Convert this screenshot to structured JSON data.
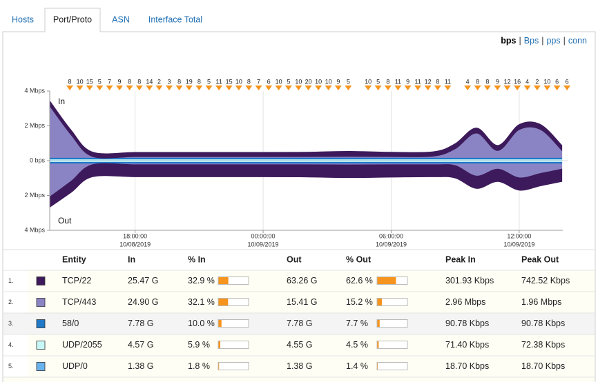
{
  "tabs": [
    "Hosts",
    "Port/Proto",
    "ASN",
    "Interface Total"
  ],
  "active_tab": 1,
  "units": {
    "options": [
      "bps",
      "Bps",
      "pps",
      "conn"
    ],
    "separator": "|",
    "active": 0
  },
  "chart_data": {
    "type": "area",
    "in_label": "In",
    "out_label": "Out",
    "x": [
      14,
      15,
      16,
      18,
      20,
      22,
      24,
      26,
      28,
      30,
      32,
      33,
      34,
      35,
      36,
      37,
      38
    ],
    "xlim": [
      14,
      38.3
    ],
    "xticks": [
      {
        "value": 18,
        "label": [
          "18:00:00",
          "10/08/2019"
        ]
      },
      {
        "value": 24,
        "label": [
          "00:00:00",
          "10/09/2019"
        ]
      },
      {
        "value": 30,
        "label": [
          "06:00:00",
          "10/09/2019"
        ]
      },
      {
        "value": 36,
        "label": [
          "12:00:00",
          "10/09/2019"
        ]
      }
    ],
    "ylim": [
      -4,
      4
    ],
    "yticks": [
      {
        "value": 4,
        "label": "4 Mbps"
      },
      {
        "value": 2,
        "label": "2 Mbps"
      },
      {
        "value": 0,
        "label": "0 bps"
      },
      {
        "value": -2,
        "label": "2 Mbps"
      },
      {
        "value": -4,
        "label": "4 Mbps"
      }
    ],
    "grid": true,
    "series": [
      {
        "color": "#6ab4ee",
        "values": [
          0.02,
          0.02,
          0.02,
          0.02,
          0.02,
          0.02,
          0.02,
          0.02,
          0.02,
          0.02,
          0.02,
          0.02,
          0.02,
          0.02,
          0.02,
          0.02,
          0.02
        ]
      },
      {
        "color": "#c8f7f7",
        "values": [
          0.07,
          0.07,
          0.07,
          0.07,
          0.07,
          0.07,
          0.07,
          0.07,
          0.07,
          0.07,
          0.07,
          0.07,
          0.07,
          0.07,
          0.07,
          0.07,
          0.07
        ]
      },
      {
        "color": "#1f78c8",
        "values": [
          0.09,
          0.09,
          0.09,
          0.09,
          0.09,
          0.09,
          0.09,
          0.09,
          0.09,
          0.09,
          0.09,
          0.09,
          0.09,
          0.09,
          0.09,
          0.09,
          0.09
        ]
      },
      {
        "color": "#8b84c4",
        "values": [
          2.96,
          1.3,
          0.06,
          0.05,
          0.05,
          0.05,
          0.05,
          0.05,
          0.06,
          0.05,
          0.08,
          0.5,
          1.4,
          0.4,
          1.6,
          1.6,
          0.4
        ]
      },
      {
        "color": "#3d1a5b",
        "values": [
          0.3,
          0.28,
          0.26,
          0.25,
          0.25,
          0.25,
          0.25,
          0.26,
          0.3,
          0.26,
          0.26,
          0.3,
          0.3,
          0.3,
          0.3,
          0.3,
          0.3
        ]
      },
      {
        "color": "#6ab4ee",
        "values": [
          -0.02,
          -0.02,
          -0.02,
          -0.02,
          -0.02,
          -0.02,
          -0.02,
          -0.02,
          -0.02,
          -0.02,
          -0.02,
          -0.02,
          -0.02,
          -0.02,
          -0.02,
          -0.02,
          -0.02
        ]
      },
      {
        "color": "#c8f7f7",
        "values": [
          -0.07,
          -0.07,
          -0.07,
          -0.07,
          -0.07,
          -0.07,
          -0.07,
          -0.07,
          -0.07,
          -0.07,
          -0.07,
          -0.07,
          -0.07,
          -0.07,
          -0.07,
          -0.07,
          -0.07
        ]
      },
      {
        "color": "#1f78c8",
        "values": [
          -0.09,
          -0.09,
          -0.09,
          -0.09,
          -0.09,
          -0.09,
          -0.09,
          -0.09,
          -0.09,
          -0.09,
          -0.09,
          -0.09,
          -0.09,
          -0.09,
          -0.09,
          -0.09,
          -0.09
        ]
      },
      {
        "color": "#8b84c4",
        "values": [
          -1.9,
          -1.0,
          -0.05,
          -0.05,
          -0.05,
          -0.05,
          -0.05,
          -0.05,
          -0.06,
          -0.05,
          -0.05,
          -0.1,
          -0.7,
          -0.3,
          -0.8,
          -0.55,
          -0.3
        ]
      },
      {
        "color": "#3d1a5b",
        "values": [
          -0.6,
          -0.65,
          -0.7,
          -0.7,
          -0.7,
          -0.7,
          -0.7,
          -0.71,
          -0.74,
          -0.72,
          -0.7,
          -0.72,
          -0.72,
          -0.72,
          -0.72,
          -0.72,
          -0.72
        ]
      }
    ],
    "events": {
      "color": "#f7941d",
      "x": [
        14.94,
        15.41,
        15.87,
        16.34,
        16.8,
        17.27,
        17.74,
        18.2,
        18.67,
        19.13,
        19.6,
        20.07,
        20.53,
        21.0,
        21.46,
        21.93,
        22.4,
        22.86,
        23.33,
        23.79,
        24.26,
        24.73,
        25.19,
        25.66,
        26.12,
        26.59,
        27.06,
        27.52,
        27.99,
        28.92,
        29.39,
        29.85,
        30.32,
        30.78,
        31.25,
        31.72,
        32.18,
        32.65,
        33.58,
        34.05,
        34.51,
        34.98,
        35.44,
        35.91,
        36.38,
        36.84,
        37.31,
        37.77,
        38.24
      ],
      "counts": [
        8,
        10,
        15,
        5,
        7,
        9,
        8,
        8,
        14,
        2,
        3,
        8,
        19,
        8,
        5,
        11,
        15,
        10,
        8,
        7,
        6,
        10,
        5,
        10,
        20,
        10,
        10,
        9,
        5,
        10,
        5,
        8,
        11,
        9,
        11,
        12,
        8,
        11,
        4,
        8,
        8,
        9,
        12,
        16,
        4,
        2,
        10,
        6,
        6
      ]
    }
  },
  "table": {
    "columns": [
      "Entity",
      "In",
      "% In",
      "Out",
      "% Out",
      "Peak In",
      "Peak Out"
    ],
    "bar_color": "#f7941d",
    "rows": [
      {
        "index": "1.",
        "color": "#3d1a5b",
        "entity": "TCP/22",
        "in": "25.47 G",
        "pct_in": {
          "value": 32.9,
          "label": "32.9 %"
        },
        "out": "63.26 G",
        "pct_out": {
          "value": 62.6,
          "label": "62.6 %"
        },
        "peak_in": "301.93 Kbps",
        "peak_out": "742.52 Kbps"
      },
      {
        "index": "2.",
        "color": "#8b84c4",
        "entity": "TCP/443",
        "in": "24.90 G",
        "pct_in": {
          "value": 32.1,
          "label": "32.1 %"
        },
        "out": "15.41 G",
        "pct_out": {
          "value": 15.2,
          "label": "15.2 %"
        },
        "peak_in": "2.96 Mbps",
        "peak_out": "1.96 Mbps"
      },
      {
        "index": "3.",
        "color": "#1f78c8",
        "entity": "58/0",
        "in": "7.78 G",
        "pct_in": {
          "value": 10.0,
          "label": "10.0 %"
        },
        "out": "7.78 G",
        "pct_out": {
          "value": 7.7,
          "label": "7.7 %"
        },
        "peak_in": "90.78 Kbps",
        "peak_out": "90.78 Kbps"
      },
      {
        "index": "4.",
        "color": "#c8f7f7",
        "entity": "UDP/2055",
        "in": "4.57 G",
        "pct_in": {
          "value": 5.9,
          "label": "5.9 %"
        },
        "out": "4.55 G",
        "pct_out": {
          "value": 4.5,
          "label": "4.5 %"
        },
        "peak_in": "71.40 Kbps",
        "peak_out": "72.38 Kbps"
      },
      {
        "index": "5.",
        "color": "#6ab4ee",
        "entity": "UDP/0",
        "in": "1.38 G",
        "pct_in": {
          "value": 1.8,
          "label": "1.8 %"
        },
        "out": "1.38 G",
        "pct_out": {
          "value": 1.4,
          "label": "1.4 %"
        },
        "peak_in": "18.70 Kbps",
        "peak_out": "18.70 Kbps"
      }
    ]
  }
}
